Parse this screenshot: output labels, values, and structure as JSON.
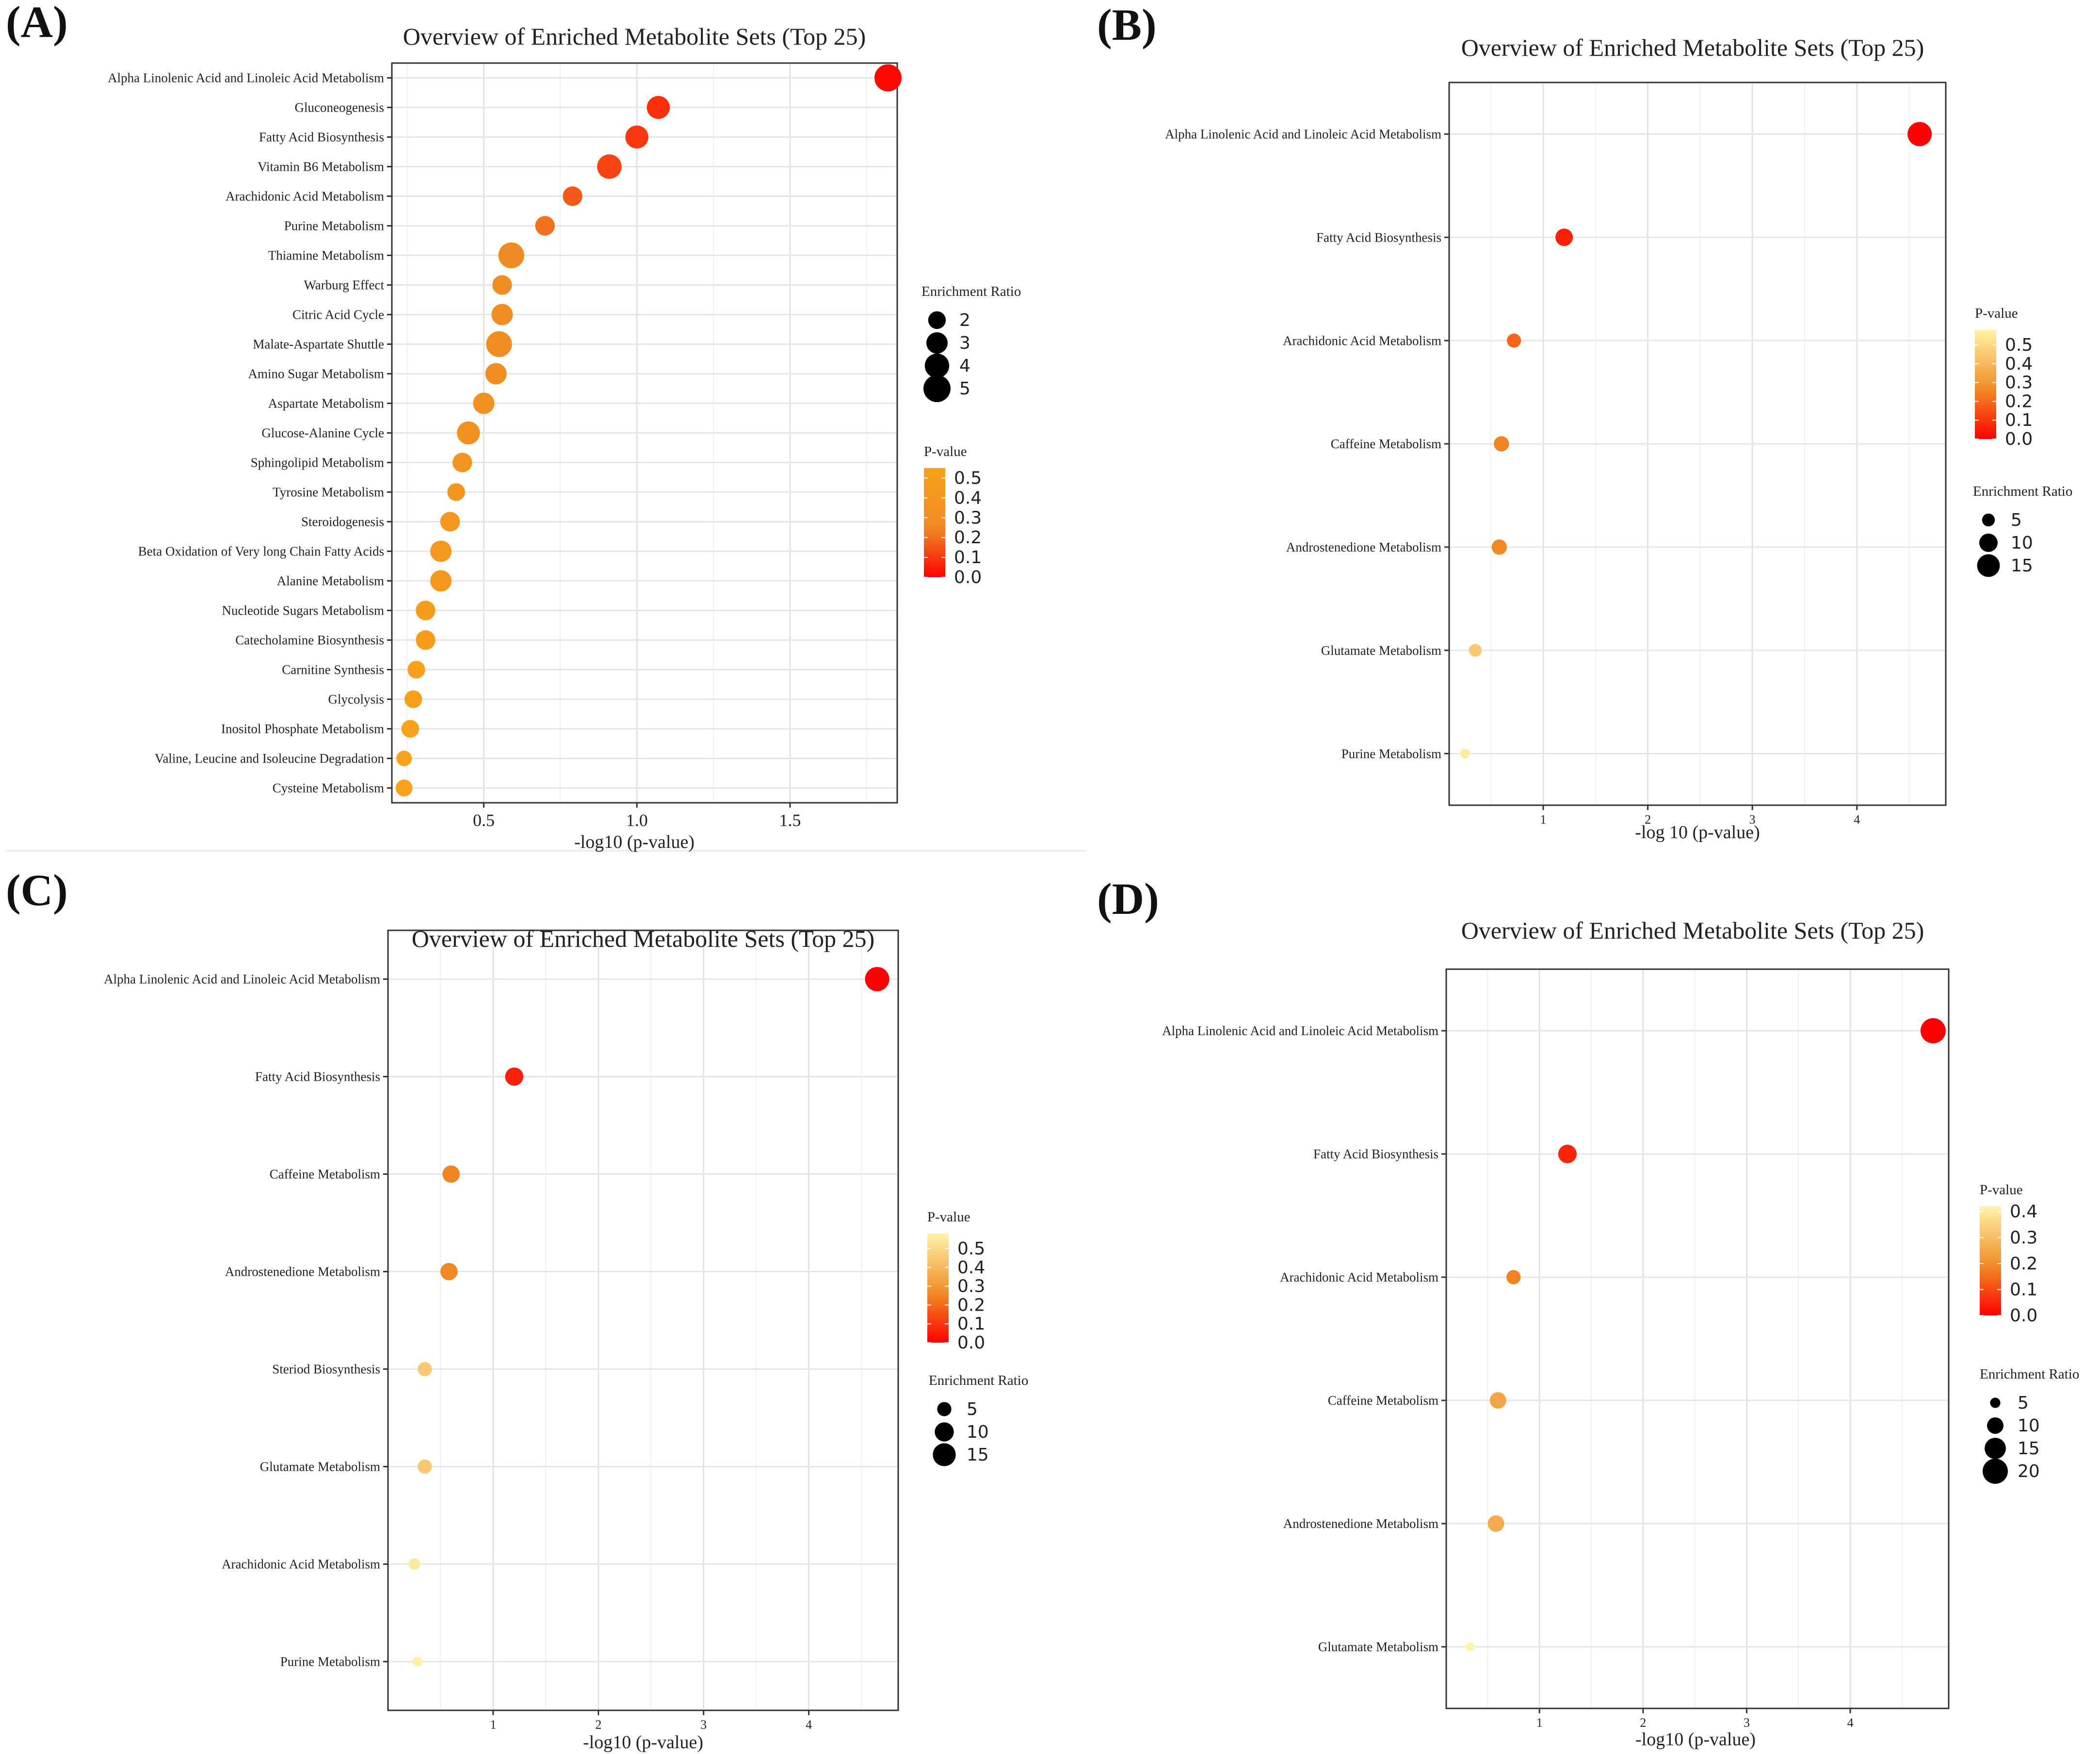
{
  "panel_labels": [
    "(A)",
    "(B)",
    "(C)",
    "(D)"
  ],
  "colors": {
    "low_p": "#ff0000",
    "mid_p": "#f08a24",
    "high_p_A": "#f7a21a",
    "high_p_B": "#fff3a8"
  },
  "chart_data": [
    {
      "type": "scatter",
      "panel": "(A)",
      "title": "Overview of Enriched Metabolite Sets (Top 25)",
      "xlabel": "-log10 (p-value)",
      "ylabel": "",
      "xlim": [
        0.2,
        1.85
      ],
      "xticks": [
        0.5,
        1.0,
        1.5
      ],
      "xtick_labels": [
        "0.5",
        "1.0",
        "1.5"
      ],
      "grid": true,
      "categories": [
        "Alpha Linolenic Acid and Linoleic Acid Metabolism",
        "Gluconeogenesis",
        "Fatty Acid Biosynthesis",
        "Vitamin B6 Metabolism",
        "Arachidonic Acid Metabolism",
        "Purine Metabolism",
        "Thiamine Metabolism",
        "Warburg Effect",
        "Citric Acid Cycle",
        "Malate-Aspartate Shuttle",
        "Amino Sugar Metabolism",
        "Aspartate Metabolism",
        "Glucose-Alanine Cycle",
        "Sphingolipid Metabolism",
        "Tyrosine Metabolism",
        "Steroidogenesis",
        "Beta Oxidation of Very long Chain Fatty Acids",
        "Alanine Metabolism",
        "Nucleotide Sugars Metabolism",
        "Catecholamine Biosynthesis",
        "Carnitine Synthesis",
        "Glycolysis",
        "Inositol Phosphate Metabolism",
        "Valine, Leucine and Isoleucine Degradation",
        "Cysteine Metabolism"
      ],
      "x": [
        1.82,
        1.07,
        1.0,
        0.91,
        0.79,
        0.7,
        0.59,
        0.56,
        0.56,
        0.55,
        0.54,
        0.5,
        0.45,
        0.43,
        0.41,
        0.39,
        0.36,
        0.36,
        0.31,
        0.31,
        0.28,
        0.27,
        0.26,
        0.24,
        0.24
      ],
      "size": [
        5,
        3.5,
        3.5,
        4,
        2.5,
        2.5,
        4.5,
        2.5,
        3,
        4.5,
        3,
        3,
        3.5,
        2.5,
        2,
        2.5,
        3,
        3,
        2.5,
        2.5,
        2,
        2,
        2,
        1.5,
        1.8
      ],
      "p_value": [
        0.015,
        0.085,
        0.1,
        0.12,
        0.16,
        0.2,
        0.26,
        0.28,
        0.28,
        0.28,
        0.29,
        0.32,
        0.35,
        0.37,
        0.39,
        0.41,
        0.44,
        0.44,
        0.49,
        0.49,
        0.52,
        0.54,
        0.55,
        0.57,
        0.57
      ],
      "legend_size": {
        "title": "Enrichment Ratio",
        "values": [
          2,
          3,
          4,
          5
        ],
        "labels": [
          "2",
          "3",
          "4",
          "5"
        ]
      },
      "legend_color": {
        "title": "P-value",
        "ticks": [
          0.5,
          0.4,
          0.3,
          0.2,
          0.1,
          0.0
        ],
        "labels": [
          "0.5",
          "0.4",
          "0.3",
          "0.2",
          "0.1",
          "0.0"
        ],
        "range": [
          0,
          0.55
        ]
      },
      "legend_order": "size-first"
    },
    {
      "type": "scatter",
      "panel": "(B)",
      "title": "Overview of Enriched Metabolite Sets (Top 25)",
      "xlabel": "-log 10 (p-value)",
      "ylabel": "",
      "xlim": [
        0.1,
        4.85
      ],
      "xticks": [
        1,
        2,
        3,
        4
      ],
      "xtick_labels": [
        "1",
        "2",
        "3",
        "4"
      ],
      "grid": true,
      "categories": [
        "Alpha Linolenic Acid and Linoleic Acid Metabolism",
        "Fatty Acid Biosynthesis",
        "Arachidonic Acid Metabolism",
        "Caffeine Metabolism",
        "Androstenedione Metabolism",
        "Glutamate Metabolism",
        "Purine Metabolism"
      ],
      "x": [
        4.6,
        1.2,
        0.72,
        0.6,
        0.58,
        0.35,
        0.25
      ],
      "size": [
        17,
        9,
        6,
        7,
        7,
        5,
        3
      ],
      "p_value": [
        0.0,
        0.06,
        0.19,
        0.25,
        0.26,
        0.45,
        0.56
      ],
      "legend_size": {
        "title": "Enrichment Ratio",
        "values": [
          5,
          10,
          15
        ],
        "labels": [
          "5",
          "10",
          "15"
        ]
      },
      "legend_color": {
        "title": "P-value",
        "ticks": [
          0.5,
          0.4,
          0.3,
          0.2,
          0.1,
          0.0
        ],
        "labels": [
          "0.5",
          "0.4",
          "0.3",
          "0.2",
          "0.1",
          "0.0"
        ],
        "range": [
          0,
          0.58
        ]
      },
      "legend_order": "color-first"
    },
    {
      "type": "scatter",
      "panel": "(C)",
      "title": "Overview of  Enriched Metabolite Sets (Top 25)",
      "xlabel": "-log10 (p-value)",
      "ylabel": "",
      "xlim": [
        0.0,
        4.85
      ],
      "xticks": [
        1,
        2,
        3,
        4
      ],
      "xtick_labels": [
        "1",
        "2",
        "3",
        "4"
      ],
      "grid": true,
      "categories": [
        "Alpha Linolenic Acid and Linoleic Acid Metabolism",
        "Fatty Acid Biosynthesis",
        "Caffeine Metabolism",
        "Androstenedione Metabolism",
        "Steriod Biosynthesis",
        "Glutamate Metabolism",
        "Arachidonic Acid Metabolism",
        "Purine Metabolism"
      ],
      "x": [
        4.65,
        1.2,
        0.6,
        0.58,
        0.35,
        0.35,
        0.25,
        0.28
      ],
      "size": [
        17,
        9,
        8,
        8,
        5,
        5,
        3,
        2
      ],
      "p_value": [
        0.0,
        0.06,
        0.25,
        0.26,
        0.45,
        0.45,
        0.55,
        0.57
      ],
      "legend_size": {
        "title": "Enrichment Ratio",
        "values": [
          5,
          10,
          15
        ],
        "labels": [
          "5",
          "10",
          "15"
        ]
      },
      "legend_color": {
        "title": "P-value",
        "ticks": [
          0.5,
          0.4,
          0.3,
          0.2,
          0.1,
          0.0
        ],
        "labels": [
          "0.5",
          "0.4",
          "0.3",
          "0.2",
          "0.1",
          "0.0"
        ],
        "range": [
          0,
          0.58
        ]
      },
      "legend_order": "color-first"
    },
    {
      "type": "scatter",
      "panel": "(D)",
      "title": "Overview of Enriched Metabolite Sets (Top 25)",
      "xlabel": "-log10 (p-value)",
      "ylabel": "",
      "xlim": [
        0.1,
        4.95
      ],
      "xticks": [
        1,
        2,
        3,
        4
      ],
      "xtick_labels": [
        "1",
        "2",
        "3",
        "4"
      ],
      "grid": true,
      "categories": [
        "Alpha Linolenic Acid and Linoleic Acid Metabolism",
        "Fatty Acid Biosynthesis",
        "Arachidonic Acid Metabolism",
        "Caffeine Metabolism",
        "Androstenedione Metabolism",
        "Glutamate Metabolism"
      ],
      "x": [
        4.8,
        1.27,
        0.75,
        0.6,
        0.58,
        0.33
      ],
      "size": [
        20,
        12,
        8,
        10,
        10,
        4
      ],
      "p_value": [
        0.0,
        0.05,
        0.18,
        0.25,
        0.26,
        0.42
      ],
      "legend_size": {
        "title": "Enrichment Ratio",
        "values": [
          5,
          10,
          15,
          20
        ],
        "labels": [
          "5",
          "10",
          "15",
          "20"
        ]
      },
      "legend_color": {
        "title": "P-value",
        "ticks": [
          0.4,
          0.3,
          0.2,
          0.1,
          0.0
        ],
        "labels": [
          "0.4",
          "0.3",
          "0.2",
          "0.1",
          "0.0"
        ],
        "range": [
          0,
          0.42
        ]
      },
      "legend_order": "color-first"
    }
  ]
}
